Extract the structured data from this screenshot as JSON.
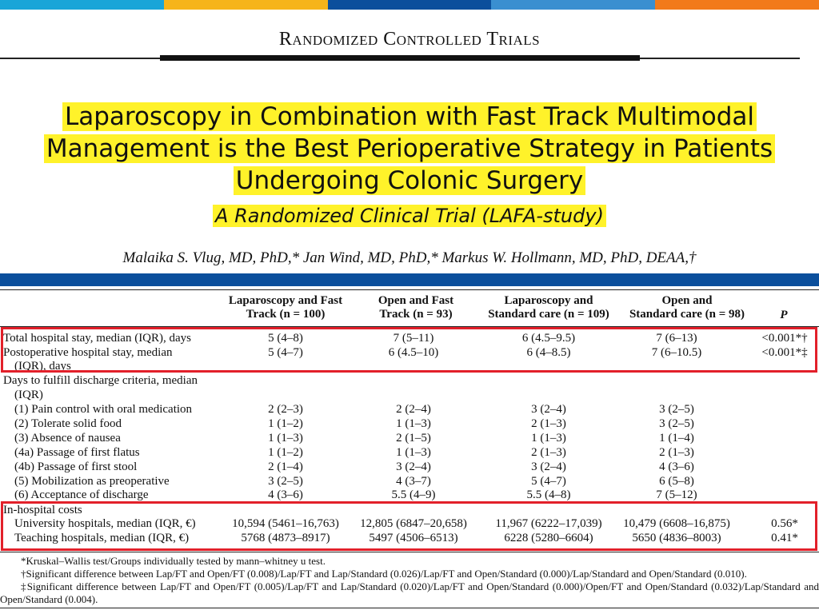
{
  "colors": {
    "top_bar": [
      "#19a5d8",
      "#f6b41a",
      "#0b4f9c",
      "#3a8fd0",
      "#f27a1a"
    ],
    "highlight": "#fff22a",
    "blue_band": "#0b4f9c",
    "red_box": "#e2202a"
  },
  "header": "Randomized Controlled Trials",
  "title": {
    "line1": "Laparoscopy in Combination with Fast Track Multimodal",
    "line2": "Management is the Best Perioperative Strategy in Patients",
    "line3": "Undergoing Colonic Surgery"
  },
  "subtitle": "A Randomized Clinical Trial (LAFA-study)",
  "authors": "Malaika S. Vlug, MD, PhD,* Jan Wind, MD, PhD,* Markus W. Hollmann, MD, PhD, DEAA,†",
  "table": {
    "columns": [
      {
        "line1": "Laparoscopy and Fast",
        "line2": "Track (n = 100)"
      },
      {
        "line1": "Open and Fast",
        "line2": "Track (n = 93)"
      },
      {
        "line1": "Laparoscopy and",
        "line2": "Standard care (n = 109)"
      },
      {
        "line1": "Open and",
        "line2": "Standard care (n = 98)"
      },
      {
        "line1": "P",
        "line2": ""
      }
    ],
    "rows": {
      "total_stay": {
        "label": "Total hospital stay, median (IQR), days",
        "values": [
          "5 (4–8)",
          "7 (5–11)",
          "6 (4.5–9.5)",
          "7 (6–13)",
          "<0.001*†"
        ]
      },
      "postop_stay": {
        "label1": "Postoperative hospital stay, median",
        "label2": "(IQR), days",
        "values": [
          "5 (4–7)",
          "6 (4.5–10)",
          "6 (4–8.5)",
          "7 (6–10.5)",
          "<0.001*‡"
        ]
      },
      "discharge_header": {
        "label1": "Days to fulfill discharge criteria, median",
        "label2": "(IQR)"
      },
      "discharge": [
        {
          "label": "(1) Pain control with oral medication",
          "values": [
            "2 (2–3)",
            "2 (2–4)",
            "3 (2–4)",
            "3 (2–5)"
          ]
        },
        {
          "label": "(2) Tolerate solid food",
          "values": [
            "1 (1–2)",
            "1 (1–3)",
            "2 (1–3)",
            "3 (2–5)"
          ]
        },
        {
          "label": "(3) Absence of nausea",
          "values": [
            "1 (1–3)",
            "2 (1–5)",
            "1 (1–3)",
            "1 (1–4)"
          ]
        },
        {
          "label": "(4a) Passage of first flatus",
          "values": [
            "1 (1–2)",
            "1 (1–3)",
            "2 (1–3)",
            "2 (1–3)"
          ]
        },
        {
          "label": "(4b) Passage of first stool",
          "values": [
            "2 (1–4)",
            "3 (2–4)",
            "3 (2–4)",
            "4 (3–6)"
          ]
        },
        {
          "label": "(5) Mobilization as preoperative",
          "values": [
            "3 (2–5)",
            "4 (3–7)",
            "5 (4–7)",
            "6 (5–8)"
          ]
        },
        {
          "label": "(6) Acceptance of discharge",
          "values": [
            "4 (3–6)",
            "5.5 (4–9)",
            "5.5 (4–8)",
            "7 (5–12)"
          ]
        }
      ],
      "costs_header": "In-hospital costs",
      "university": {
        "label": "University hospitals, median (IQR, €)",
        "values": [
          "10,594 (5461–16,763)",
          "12,805 (6847–20,658)",
          "11,967 (6222–17,039)",
          "10,479 (6608–16,875)",
          "0.56*"
        ]
      },
      "teaching": {
        "label": "Teaching hospitals, median (IQR, €)",
        "values": [
          "5768 (4873–8917)",
          "5497 (4506–6513)",
          "6228 (5280–6604)",
          "5650 (4836–8003)",
          "0.41*"
        ]
      }
    }
  },
  "footnotes": {
    "f1": "*Kruskal–Wallis test/Groups individually tested by mann–whitney u test.",
    "f2": "†Significant difference between Lap/FT and Open/FT (0.008)/Lap/FT and Lap/Standard (0.026)/Lap/FT and Open/Standard (0.000)/Lap/Standard and Open/Standard (0.010).",
    "f3": "‡Significant difference between Lap/FT and Open/FT (0.005)/Lap/FT and Lap/Standard (0.020)/Lap/FT and Open/Standard (0.000)/Open/FT and Open/Standard (0.032)/Lap/Standard and Open/Standard (0.004)."
  }
}
